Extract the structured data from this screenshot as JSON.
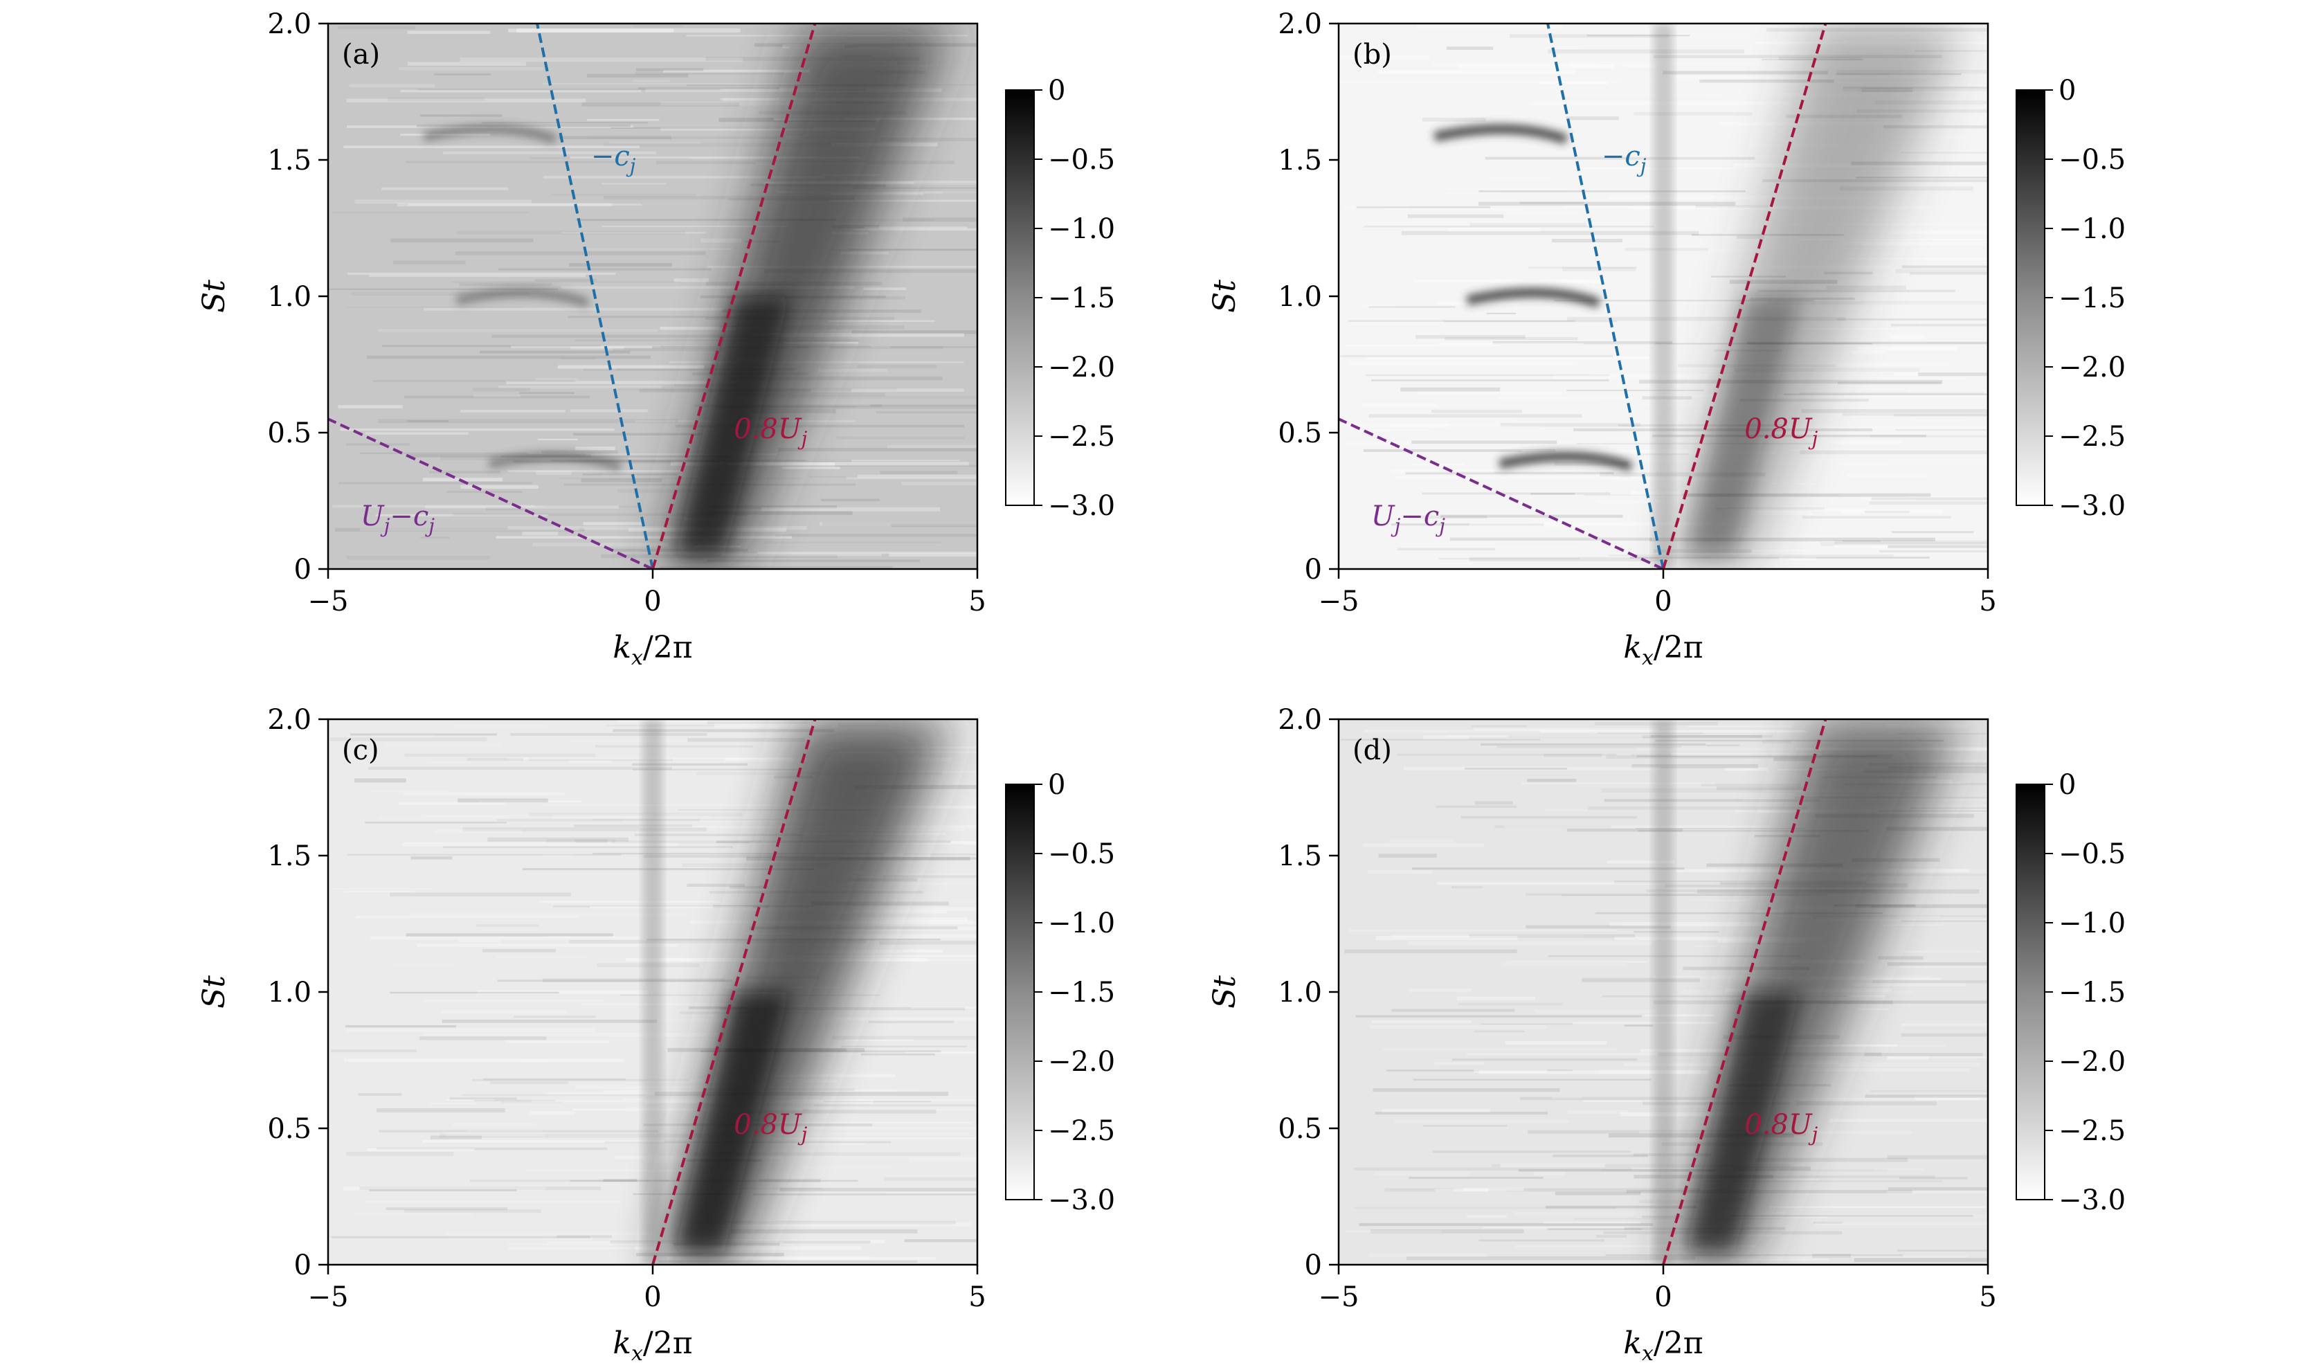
{
  "chart_data": [
    {
      "type": "heatmap",
      "panel_label": "(a)",
      "xlabel": "k_x/2π",
      "ylabel": "St",
      "xlim": [
        -5,
        5
      ],
      "ylim": [
        0,
        2
      ],
      "xticks": [
        "−5",
        "0",
        "5"
      ],
      "yticks": [
        "0",
        "0.5",
        "1.0",
        "1.5",
        "2.0"
      ],
      "colorbar": {
        "range": [
          -3.0,
          0
        ],
        "ticks": [
          "0",
          "−0.5",
          "−1.0",
          "−1.5",
          "−2.0",
          "−2.5",
          "−3.0"
        ],
        "colormap": "gray_r"
      },
      "lines": [
        {
          "label": "−c_j",
          "label_main": "−c",
          "label_sub": "j",
          "style": "dashed",
          "color": "#1f6fa8",
          "points": [
            [
              0,
              0
            ],
            [
              -1.78,
              2.0
            ]
          ],
          "label_pos": [
            -0.95,
            1.48
          ]
        },
        {
          "label": "0.8U_j",
          "label_main": "0.8U",
          "label_sub": "j",
          "style": "dashed",
          "color": "#a6163f",
          "points": [
            [
              0,
              0
            ],
            [
              2.5,
              2.0
            ]
          ],
          "label_pos": [
            1.25,
            0.48
          ]
        },
        {
          "label": "U_j−c_j",
          "label_main": "U",
          "label_sub": "j",
          "label_main2": "−c",
          "label_sub2": "j",
          "style": "dashed",
          "color": "#7b2d8e",
          "points": [
            [
              0,
              0
            ],
            [
              -5,
              0.55
            ]
          ],
          "label_pos": [
            -4.5,
            0.16
          ]
        }
      ]
    },
    {
      "type": "heatmap",
      "panel_label": "(b)",
      "xlabel": "k_x/2π",
      "ylabel": "St",
      "xlim": [
        -5,
        5
      ],
      "ylim": [
        0,
        2
      ],
      "xticks": [
        "−5",
        "0",
        "5"
      ],
      "yticks": [
        "0",
        "0.5",
        "1.0",
        "1.5",
        "2.0"
      ],
      "colorbar": {
        "range": [
          -3.0,
          0
        ],
        "ticks": [
          "0",
          "−0.5",
          "−1.0",
          "−1.5",
          "−2.0",
          "−2.5",
          "−3.0"
        ],
        "colormap": "gray_r"
      },
      "lines": [
        {
          "label": "−c_j",
          "label_main": "−c",
          "label_sub": "j",
          "style": "dashed",
          "color": "#1f6fa8",
          "points": [
            [
              0,
              0
            ],
            [
              -1.78,
              2.0
            ]
          ],
          "label_pos": [
            -0.95,
            1.48
          ]
        },
        {
          "label": "0.8U_j",
          "label_main": "0.8U",
          "label_sub": "j",
          "style": "dashed",
          "color": "#a6163f",
          "points": [
            [
              0,
              0
            ],
            [
              2.5,
              2.0
            ]
          ],
          "label_pos": [
            1.25,
            0.48
          ]
        },
        {
          "label": "U_j−c_j",
          "label_main": "U",
          "label_sub": "j",
          "label_main2": "−c",
          "label_sub2": "j",
          "style": "dashed",
          "color": "#7b2d8e",
          "points": [
            [
              0,
              0
            ],
            [
              -5,
              0.55
            ]
          ],
          "label_pos": [
            -4.5,
            0.16
          ]
        }
      ]
    },
    {
      "type": "heatmap",
      "panel_label": "(c)",
      "xlabel": "k_x/2π",
      "ylabel": "St",
      "xlim": [
        -5,
        5
      ],
      "ylim": [
        0,
        2
      ],
      "xticks": [
        "−5",
        "0",
        "5"
      ],
      "yticks": [
        "0",
        "0.5",
        "1.0",
        "1.5",
        "2.0"
      ],
      "colorbar": {
        "range": [
          -3.0,
          0
        ],
        "ticks": [
          "0",
          "−0.5",
          "−1.0",
          "−1.5",
          "−2.0",
          "−2.5",
          "−3.0"
        ],
        "colormap": "gray_r"
      },
      "lines": [
        {
          "label": "0.8U_j",
          "label_main": "0.8U",
          "label_sub": "j",
          "style": "dashed",
          "color": "#a6163f",
          "points": [
            [
              0,
              0
            ],
            [
              2.5,
              2.0
            ]
          ],
          "label_pos": [
            1.25,
            0.48
          ]
        }
      ]
    },
    {
      "type": "heatmap",
      "panel_label": "(d)",
      "xlabel": "k_x/2π",
      "ylabel": "St",
      "xlim": [
        -5,
        5
      ],
      "ylim": [
        0,
        2
      ],
      "xticks": [
        "−5",
        "0",
        "5"
      ],
      "yticks": [
        "0",
        "0.5",
        "1.0",
        "1.5",
        "2.0"
      ],
      "colorbar": {
        "range": [
          -3.0,
          0
        ],
        "ticks": [
          "0",
          "−0.5",
          "−1.0",
          "−1.5",
          "−2.0",
          "−2.5",
          "−3.0"
        ],
        "colormap": "gray_r"
      },
      "lines": [
        {
          "label": "0.8U_j",
          "label_main": "0.8U",
          "label_sub": "j",
          "style": "dashed",
          "color": "#a6163f",
          "points": [
            [
              0,
              0
            ],
            [
              2.5,
              2.0
            ]
          ],
          "label_pos": [
            1.25,
            0.48
          ]
        }
      ]
    }
  ]
}
